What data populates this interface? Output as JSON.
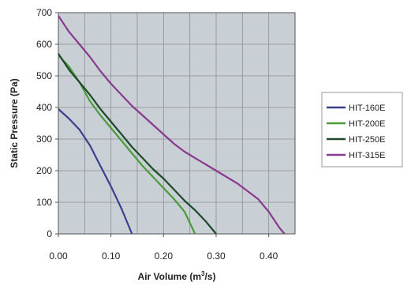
{
  "chart_data": {
    "type": "line",
    "xlabel": "Air Volume (m",
    "xlabel_sup": "3",
    "xlabel_end": "/s)",
    "ylabel": "Static Pressure (Pa)",
    "xlim": [
      0,
      0.45
    ],
    "ylim": [
      0,
      700
    ],
    "xticks": [
      0,
      0.1,
      0.2,
      0.3,
      0.4
    ],
    "xtick_labels": [
      "0.00",
      "0.10",
      "0.20",
      "0.30",
      "0.40"
    ],
    "yticks": [
      0,
      100,
      200,
      300,
      400,
      500,
      600,
      700
    ],
    "ytick_labels": [
      "0",
      "100",
      "200",
      "300",
      "400",
      "500",
      "600",
      "700"
    ],
    "grid": true,
    "legend_position": "right",
    "plot_background": "#c9d0d5",
    "series": [
      {
        "name": "HIT-160E",
        "color": "#3b3f8c",
        "x": [
          0.0,
          0.02,
          0.04,
          0.06,
          0.08,
          0.1,
          0.12,
          0.14
        ],
        "y": [
          395,
          365,
          330,
          280,
          215,
          150,
          80,
          0
        ]
      },
      {
        "name": "HIT-200E",
        "color": "#4a9a3a",
        "x": [
          0.0,
          0.02,
          0.04,
          0.06,
          0.08,
          0.1,
          0.12,
          0.14,
          0.16,
          0.18,
          0.2,
          0.22,
          0.24,
          0.26
        ],
        "y": [
          565,
          530,
          480,
          420,
          375,
          335,
          295,
          255,
          215,
          180,
          145,
          110,
          70,
          0
        ]
      },
      {
        "name": "HIT-250E",
        "color": "#1f4a2a",
        "x": [
          0.0,
          0.02,
          0.04,
          0.06,
          0.08,
          0.1,
          0.12,
          0.14,
          0.16,
          0.18,
          0.2,
          0.22,
          0.24,
          0.26,
          0.28,
          0.3
        ],
        "y": [
          570,
          520,
          480,
          440,
          395,
          355,
          315,
          275,
          240,
          205,
          175,
          140,
          105,
          75,
          40,
          0
        ]
      },
      {
        "name": "HIT-315E",
        "color": "#8a3a8f",
        "x": [
          0.0,
          0.02,
          0.04,
          0.06,
          0.08,
          0.1,
          0.12,
          0.14,
          0.16,
          0.18,
          0.2,
          0.22,
          0.24,
          0.26,
          0.28,
          0.3,
          0.32,
          0.34,
          0.36,
          0.38,
          0.4,
          0.42,
          0.43
        ],
        "y": [
          690,
          640,
          600,
          560,
          515,
          475,
          440,
          405,
          375,
          345,
          315,
          285,
          260,
          240,
          220,
          200,
          180,
          160,
          135,
          110,
          70,
          20,
          0
        ]
      }
    ]
  }
}
